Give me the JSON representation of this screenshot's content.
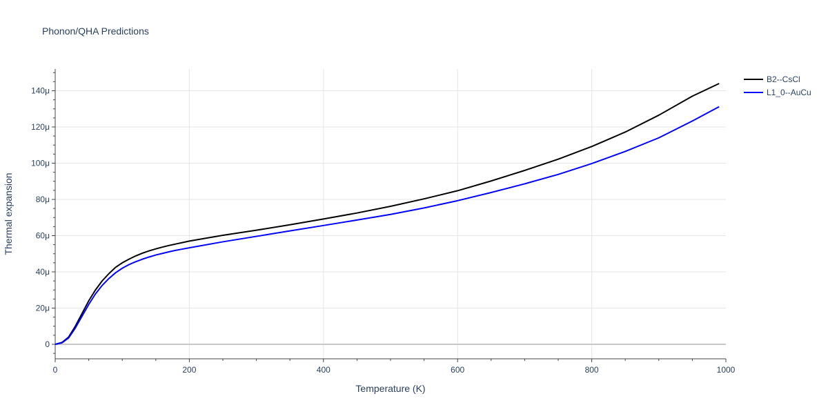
{
  "chart_data": {
    "type": "line",
    "title": "Phonon/QHA Predictions",
    "xlabel": "Temperature (K)",
    "ylabel": "Thermal expansion",
    "xlim": [
      0,
      1000
    ],
    "ylim": [
      -8e-06,
      0.000152
    ],
    "x_ticks": [
      0,
      200,
      400,
      600,
      800,
      1000
    ],
    "x_tick_labels": [
      "0",
      "200",
      "400",
      "600",
      "800",
      "1000"
    ],
    "y_ticks": [
      0,
      2e-05,
      4e-05,
      6e-05,
      8e-05,
      0.0001,
      0.00012,
      0.00014
    ],
    "y_tick_labels": [
      "0",
      "20μ",
      "40μ",
      "60μ",
      "80μ",
      "100μ",
      "120μ",
      "140μ"
    ],
    "grid": true,
    "legend_position": "top-right",
    "series": [
      {
        "name": "B2--CsCl",
        "color": "#000000",
        "x": [
          0,
          10,
          20,
          30,
          40,
          50,
          60,
          70,
          80,
          90,
          100,
          110,
          120,
          130,
          140,
          150,
          160,
          170,
          180,
          190,
          200,
          250,
          300,
          350,
          400,
          450,
          500,
          550,
          600,
          650,
          700,
          750,
          800,
          850,
          900,
          950,
          990
        ],
        "y": [
          0,
          1e-06,
          4e-06,
          1e-05,
          1.7e-05,
          2.4e-05,
          3e-05,
          3.5e-05,
          3.9e-05,
          4.25e-05,
          4.5e-05,
          4.7e-05,
          4.88e-05,
          5.03e-05,
          5.16e-05,
          5.27e-05,
          5.37e-05,
          5.46e-05,
          5.54e-05,
          5.62e-05,
          5.7e-05,
          6.02e-05,
          6.3e-05,
          6.6e-05,
          6.92e-05,
          7.25e-05,
          7.62e-05,
          8.03e-05,
          8.48e-05,
          9.02e-05,
          9.6e-05,
          0.0001022,
          0.0001092,
          0.0001172,
          0.0001265,
          0.000137,
          0.000144
        ]
      },
      {
        "name": "L1_0--AuCu",
        "color": "#0000ff",
        "x": [
          0,
          10,
          20,
          30,
          40,
          50,
          60,
          70,
          80,
          90,
          100,
          110,
          120,
          130,
          140,
          150,
          160,
          170,
          180,
          190,
          200,
          250,
          300,
          350,
          400,
          450,
          500,
          550,
          600,
          650,
          700,
          750,
          800,
          850,
          900,
          950,
          990
        ],
        "y": [
          0,
          8e-07,
          3.5e-06,
          9e-06,
          1.55e-05,
          2.2e-05,
          2.78e-05,
          3.25e-05,
          3.63e-05,
          3.95e-05,
          4.2e-05,
          4.4e-05,
          4.56e-05,
          4.7e-05,
          4.82e-05,
          4.93e-05,
          5.02e-05,
          5.11e-05,
          5.19e-05,
          5.26e-05,
          5.33e-05,
          5.66e-05,
          5.96e-05,
          6.26e-05,
          6.56e-05,
          6.86e-05,
          7.17e-05,
          7.53e-05,
          7.93e-05,
          8.38e-05,
          8.86e-05,
          9.38e-05,
          9.98e-05,
          0.0001065,
          0.000114,
          0.0001233,
          0.0001312
        ]
      }
    ]
  }
}
